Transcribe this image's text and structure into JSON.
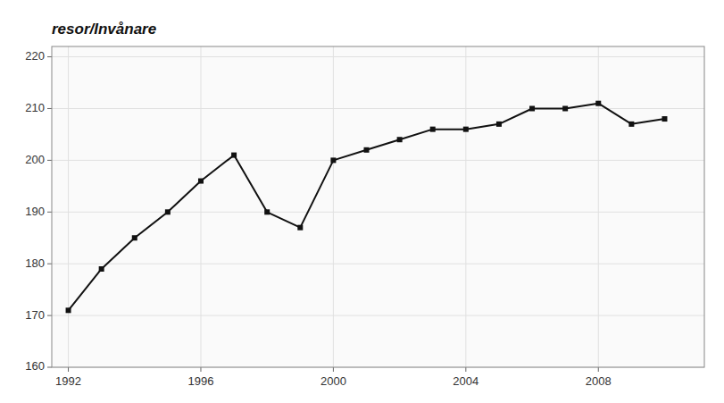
{
  "chart_data": {
    "type": "line",
    "y_label": "resor/Invånare",
    "x": [
      1992,
      1993,
      1994,
      1995,
      1996,
      1997,
      1998,
      1999,
      2000,
      2001,
      2002,
      2003,
      2004,
      2005,
      2006,
      2007,
      2008,
      2009,
      2010
    ],
    "values": [
      171,
      179,
      185,
      190,
      196,
      201,
      190,
      187,
      200,
      202,
      204,
      206,
      206,
      207,
      210,
      210,
      211,
      207,
      208
    ],
    "color": "#111111",
    "marker": "square",
    "xlim": [
      1991.5,
      2011.2
    ],
    "ylim": [
      160,
      222
    ],
    "xticks": [
      1992,
      1996,
      2000,
      2004,
      2008
    ],
    "yticks": [
      160,
      170,
      180,
      190,
      200,
      210,
      220
    ],
    "grid": true
  }
}
